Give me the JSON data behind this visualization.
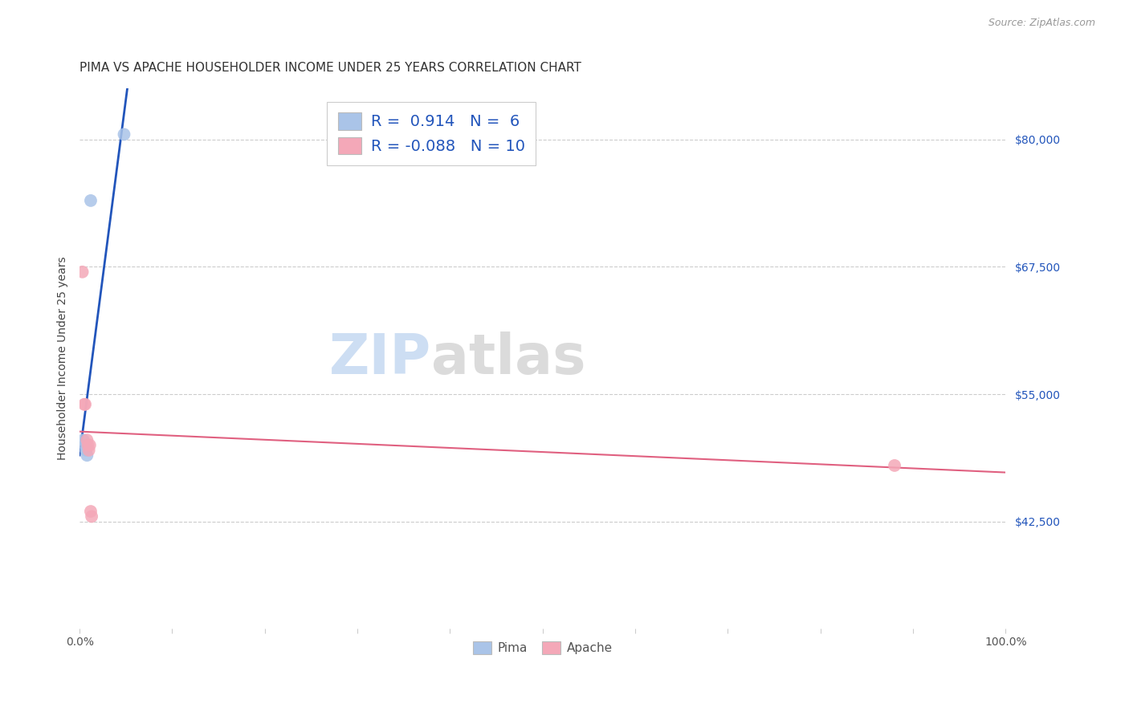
{
  "title": "PIMA VS APACHE HOUSEHOLDER INCOME UNDER 25 YEARS CORRELATION CHART",
  "source": "Source: ZipAtlas.com",
  "ylabel": "Householder Income Under 25 years",
  "xlim": [
    0.0,
    1.0
  ],
  "ylim": [
    32000,
    85000
  ],
  "yticks": [
    42500,
    55000,
    67500,
    80000
  ],
  "ytick_labels": [
    "$42,500",
    "$55,000",
    "$67,500",
    "$80,000"
  ],
  "xticks": [
    0.0,
    0.1,
    0.2,
    0.3,
    0.4,
    0.5,
    0.6,
    0.7,
    0.8,
    0.9,
    1.0
  ],
  "xtick_labels": [
    "0.0%",
    "",
    "",
    "",
    "",
    "",
    "",
    "",
    "",
    "",
    "100.0%"
  ],
  "background_color": "#ffffff",
  "pima_color": "#aac4e8",
  "apache_color": "#f4a8b8",
  "pima_line_color": "#2255bb",
  "apache_line_color": "#e06080",
  "pima_R": 0.914,
  "pima_N": 6,
  "apache_R": -0.088,
  "apache_N": 10,
  "pima_x": [
    0.004,
    0.006,
    0.007,
    0.008,
    0.012,
    0.048
  ],
  "pima_y": [
    50500,
    50000,
    49500,
    49000,
    74000,
    80500
  ],
  "apache_x": [
    0.003,
    0.005,
    0.006,
    0.008,
    0.009,
    0.01,
    0.011,
    0.012,
    0.013,
    0.88
  ],
  "apache_y": [
    67000,
    54000,
    54000,
    50500,
    50000,
    49500,
    50000,
    43500,
    43000,
    48000
  ],
  "grid_color": "#cccccc",
  "title_fontsize": 11,
  "axis_label_fontsize": 10,
  "tick_fontsize": 10,
  "legend_fontsize": 14,
  "source_fontsize": 9,
  "watermark_fontsize_zip": 48,
  "watermark_fontsize_atlas": 48
}
